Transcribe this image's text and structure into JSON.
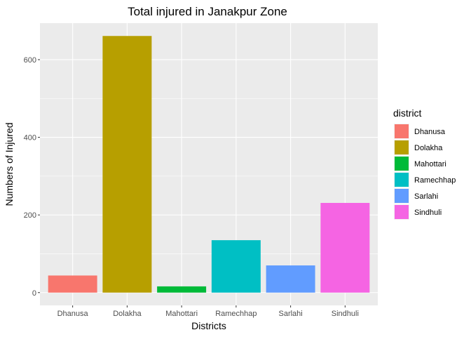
{
  "chart_data": {
    "type": "bar",
    "title": "Total injured in Janakpur Zone",
    "xlabel": "Districts",
    "ylabel": "Numbers of Injured",
    "categories": [
      "Dhanusa",
      "Dolakha",
      "Mahottari",
      "Ramechhap",
      "Sarlahi",
      "Sindhuli"
    ],
    "values": [
      44,
      661,
      16,
      135,
      70,
      231
    ],
    "colors": [
      "#F8766D",
      "#B79F00",
      "#00BA38",
      "#00BFC4",
      "#619CFF",
      "#F564E3"
    ],
    "ylim": [
      -33,
      694
    ],
    "yticks": [
      0,
      200,
      400,
      600
    ],
    "grid": true,
    "legend": {
      "title": "district",
      "position": "right",
      "entries": [
        "Dhanusa",
        "Dolakha",
        "Mahottari",
        "Ramechhap",
        "Sarlahi",
        "Sindhuli"
      ]
    }
  }
}
